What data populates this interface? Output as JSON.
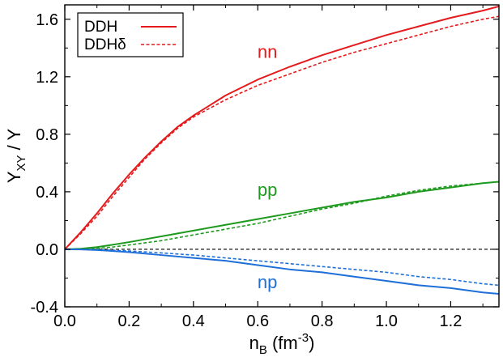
{
  "chart_data": {
    "type": "line",
    "xlabel": {
      "main": "n",
      "sub": "B",
      "unit_prefix": " (fm",
      "unit_sup": "-3",
      "unit_suffix": ")"
    },
    "ylabel": {
      "main": "Y",
      "sub": "XY",
      "suffix": " / Y"
    },
    "xlim": [
      0.0,
      1.35
    ],
    "ylim": [
      -0.4,
      1.7
    ],
    "x_ticks": [
      0.0,
      0.2,
      0.4,
      0.6,
      0.8,
      1.0,
      1.2
    ],
    "x_tick_labels": [
      "0.0",
      "0.2",
      "0.4",
      "0.6",
      "0.8",
      "1.0",
      "1.2"
    ],
    "y_ticks": [
      -0.4,
      0.0,
      0.4,
      0.8,
      1.2,
      1.6
    ],
    "y_tick_labels": [
      "-0.4",
      "0.0",
      "0.4",
      "0.8",
      "1.2",
      "1.6"
    ],
    "grid": false,
    "legend": {
      "placement": "top-left",
      "entries": [
        {
          "label": "DDH",
          "style": "solid"
        },
        {
          "label": "DDHδ",
          "style": "dashed"
        }
      ]
    },
    "reference_line": {
      "y": 0.0,
      "style": "dashed",
      "color": "#000000"
    },
    "annotations": [
      {
        "text": "nn",
        "color": "#e41a1c",
        "x": 0.63,
        "y": 1.33
      },
      {
        "text": "pp",
        "color": "#1e9a1e",
        "x": 0.63,
        "y": 0.37
      },
      {
        "text": "np",
        "color": "#1f6fd8",
        "x": 0.63,
        "y": -0.27
      }
    ],
    "series": [
      {
        "group": "nn",
        "style": "solid",
        "color": "#e41a1c",
        "x": [
          0.0,
          0.05,
          0.1,
          0.15,
          0.2,
          0.25,
          0.3,
          0.35,
          0.4,
          0.5,
          0.6,
          0.7,
          0.8,
          0.9,
          1.0,
          1.1,
          1.2,
          1.3,
          1.35
        ],
        "y": [
          0.0,
          0.12,
          0.25,
          0.39,
          0.52,
          0.64,
          0.75,
          0.85,
          0.93,
          1.07,
          1.18,
          1.27,
          1.35,
          1.42,
          1.49,
          1.55,
          1.61,
          1.66,
          1.69
        ]
      },
      {
        "group": "nn",
        "style": "dashed",
        "color": "#e41a1c",
        "x": [
          0.0,
          0.05,
          0.1,
          0.15,
          0.2,
          0.25,
          0.3,
          0.35,
          0.4,
          0.5,
          0.6,
          0.7,
          0.8,
          0.9,
          1.0,
          1.1,
          1.2,
          1.3,
          1.35
        ],
        "y": [
          0.0,
          0.11,
          0.23,
          0.37,
          0.5,
          0.63,
          0.74,
          0.84,
          0.92,
          1.04,
          1.14,
          1.22,
          1.3,
          1.37,
          1.43,
          1.49,
          1.55,
          1.6,
          1.62
        ]
      },
      {
        "group": "pp",
        "style": "solid",
        "color": "#1e9a1e",
        "x": [
          0.0,
          0.05,
          0.1,
          0.15,
          0.2,
          0.3,
          0.4,
          0.5,
          0.6,
          0.7,
          0.8,
          0.9,
          1.0,
          1.1,
          1.2,
          1.3,
          1.35
        ],
        "y": [
          0.0,
          0.004,
          0.015,
          0.032,
          0.05,
          0.09,
          0.13,
          0.17,
          0.21,
          0.25,
          0.29,
          0.33,
          0.36,
          0.4,
          0.43,
          0.46,
          0.47
        ]
      },
      {
        "group": "pp",
        "style": "dashed",
        "color": "#1e9a1e",
        "x": [
          0.0,
          0.05,
          0.1,
          0.15,
          0.2,
          0.3,
          0.4,
          0.5,
          0.6,
          0.7,
          0.8,
          0.9,
          1.0,
          1.1,
          1.2,
          1.3,
          1.35
        ],
        "y": [
          0.0,
          0.001,
          0.006,
          0.016,
          0.03,
          0.06,
          0.1,
          0.14,
          0.18,
          0.23,
          0.28,
          0.32,
          0.37,
          0.41,
          0.44,
          0.46,
          0.47
        ]
      },
      {
        "group": "np",
        "style": "solid",
        "color": "#1f6fd8",
        "x": [
          0.0,
          0.05,
          0.1,
          0.15,
          0.2,
          0.3,
          0.4,
          0.5,
          0.6,
          0.7,
          0.8,
          0.9,
          1.0,
          1.1,
          1.2,
          1.3,
          1.35
        ],
        "y": [
          0.0,
          -0.001,
          -0.005,
          -0.012,
          -0.02,
          -0.04,
          -0.06,
          -0.08,
          -0.11,
          -0.14,
          -0.16,
          -0.19,
          -0.22,
          -0.25,
          -0.27,
          -0.3,
          -0.31
        ]
      },
      {
        "group": "np",
        "style": "dashed",
        "color": "#1f6fd8",
        "x": [
          0.0,
          0.05,
          0.1,
          0.15,
          0.2,
          0.3,
          0.4,
          0.5,
          0.6,
          0.7,
          0.8,
          0.9,
          1.0,
          1.1,
          1.2,
          1.3,
          1.35
        ],
        "y": [
          0.0,
          -0.001,
          -0.003,
          -0.007,
          -0.012,
          -0.025,
          -0.04,
          -0.06,
          -0.08,
          -0.1,
          -0.12,
          -0.14,
          -0.16,
          -0.19,
          -0.21,
          -0.24,
          -0.25
        ]
      }
    ]
  }
}
